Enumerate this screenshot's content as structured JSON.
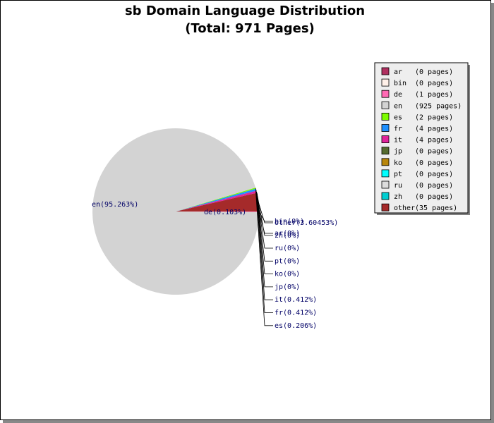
{
  "chart_data": {
    "type": "pie",
    "title": "sb Domain Language Distribution",
    "subtitle": "(Total: 971 Pages)",
    "slices": [
      {
        "name": "ar",
        "pages": 0,
        "percent": 0,
        "label": "ar(0%)",
        "legend_count": "(0 pages)",
        "color": "#b03060"
      },
      {
        "name": "bin",
        "pages": 0,
        "percent": 0,
        "label": "bin(0%)",
        "legend_count": "(0 pages)",
        "color": "#fff0e8"
      },
      {
        "name": "de",
        "pages": 1,
        "percent": 0.103,
        "label": "de(0.103%)",
        "legend_count": "(1 pages)",
        "color": "#ff69b4"
      },
      {
        "name": "en",
        "pages": 925,
        "percent": 95.263,
        "label": "en(95.263%)",
        "legend_count": "(925 pages)",
        "color": "#d3d3d3"
      },
      {
        "name": "es",
        "pages": 2,
        "percent": 0.206,
        "label": "es(0.206%)",
        "legend_count": "(2 pages)",
        "color": "#7cfc00"
      },
      {
        "name": "fr",
        "pages": 4,
        "percent": 0.412,
        "label": "fr(0.412%)",
        "legend_count": "(4 pages)",
        "color": "#1e90ff"
      },
      {
        "name": "it",
        "pages": 4,
        "percent": 0.412,
        "label": "it(0.412%)",
        "legend_count": "(4 pages)",
        "color": "#e0249b"
      },
      {
        "name": "jp",
        "pages": 0,
        "percent": 0,
        "label": "jp(0%)",
        "legend_count": "(0 pages)",
        "color": "#556b2f"
      },
      {
        "name": "ko",
        "pages": 0,
        "percent": 0,
        "label": "ko(0%)",
        "legend_count": "(0 pages)",
        "color": "#b8860b"
      },
      {
        "name": "pt",
        "pages": 0,
        "percent": 0,
        "label": "pt(0%)",
        "legend_count": "(0 pages)",
        "color": "#00ffff"
      },
      {
        "name": "ru",
        "pages": 0,
        "percent": 0,
        "label": "ru(0%)",
        "legend_count": "(0 pages)",
        "color": "#dcdcdc"
      },
      {
        "name": "zh",
        "pages": 0,
        "percent": 0,
        "label": "zh(0%)",
        "legend_count": "(0 pages)",
        "color": "#00ced1"
      },
      {
        "name": "other",
        "pages": 35,
        "percent": 3.60453,
        "label": "other(3.60453%)",
        "legend_count": "(35 pages)",
        "color": "#a52a2a"
      }
    ],
    "legend_placement": "right"
  }
}
